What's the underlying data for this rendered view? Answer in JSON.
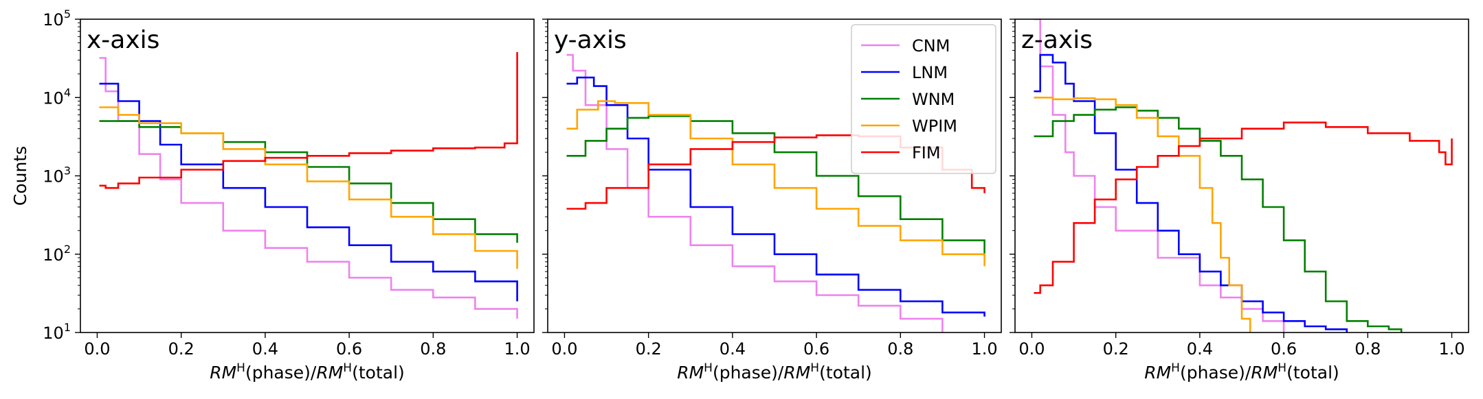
{
  "chart_data": {
    "type": "line",
    "drawstyle": "steps-mid",
    "ylabel": "Counts",
    "xlabel": {
      "prefix": "RM",
      "sup": "H",
      "mid": "(phase)/",
      "prefix2": "RM",
      "sup2": "H",
      "suffix": "(total)"
    },
    "xlim": [
      -0.04,
      1.04
    ],
    "ylim": [
      10,
      100000
    ],
    "yscale": "log",
    "grid": false,
    "x_ticks": [
      "0.0",
      "0.2",
      "0.4",
      "0.6",
      "0.8",
      "1.0"
    ],
    "x_tick_values": [
      0.0,
      0.2,
      0.4,
      0.6,
      0.8,
      1.0
    ],
    "y_ticks": [
      {
        "base": "10",
        "exp": "1",
        "value": 10
      },
      {
        "base": "10",
        "exp": "2",
        "value": 100
      },
      {
        "base": "10",
        "exp": "3",
        "value": 1000
      },
      {
        "base": "10",
        "exp": "4",
        "value": 10000
      },
      {
        "base": "10",
        "exp": "5",
        "value": 100000
      }
    ],
    "legend": {
      "placement": "top-right",
      "panel": 1,
      "entries": [
        {
          "label": "CNM",
          "color": "#ee82ee"
        },
        {
          "label": "LNM",
          "color": "#0000ff"
        },
        {
          "label": "WNM",
          "color": "#008000"
        },
        {
          "label": "WPIM",
          "color": "#ffa500"
        },
        {
          "label": "FIM",
          "color": "#ff0000"
        }
      ]
    },
    "panels": [
      {
        "title": "x-axis",
        "series": [
          {
            "name": "CNM",
            "color": "#ee82ee",
            "points": [
              [
                0.005,
                32000
              ],
              [
                0.02,
                12000
              ],
              [
                0.05,
                5000
              ],
              [
                0.1,
                1900
              ],
              [
                0.15,
                900
              ],
              [
                0.2,
                450
              ],
              [
                0.3,
                200
              ],
              [
                0.4,
                120
              ],
              [
                0.5,
                80
              ],
              [
                0.6,
                50
              ],
              [
                0.7,
                35
              ],
              [
                0.8,
                28
              ],
              [
                0.9,
                20
              ],
              [
                1.0,
                15
              ]
            ]
          },
          {
            "name": "LNM",
            "color": "#0000ff",
            "points": [
              [
                0.005,
                15000
              ],
              [
                0.05,
                9000
              ],
              [
                0.1,
                5000
              ],
              [
                0.15,
                2500
              ],
              [
                0.2,
                1400
              ],
              [
                0.3,
                700
              ],
              [
                0.4,
                400
              ],
              [
                0.5,
                220
              ],
              [
                0.6,
                130
              ],
              [
                0.7,
                80
              ],
              [
                0.8,
                60
              ],
              [
                0.9,
                45
              ],
              [
                1.0,
                25
              ]
            ]
          },
          {
            "name": "WNM",
            "color": "#008000",
            "points": [
              [
                0.005,
                5000
              ],
              [
                0.1,
                4200
              ],
              [
                0.2,
                3500
              ],
              [
                0.3,
                2700
              ],
              [
                0.4,
                2000
              ],
              [
                0.5,
                1300
              ],
              [
                0.6,
                800
              ],
              [
                0.7,
                450
              ],
              [
                0.8,
                280
              ],
              [
                0.9,
                180
              ],
              [
                1.0,
                140
              ]
            ]
          },
          {
            "name": "WPIM",
            "color": "#ffa500",
            "points": [
              [
                0.005,
                7500
              ],
              [
                0.05,
                6000
              ],
              [
                0.1,
                4700
              ],
              [
                0.2,
                3500
              ],
              [
                0.3,
                2200
              ],
              [
                0.4,
                1400
              ],
              [
                0.5,
                850
              ],
              [
                0.6,
                500
              ],
              [
                0.7,
                300
              ],
              [
                0.8,
                180
              ],
              [
                0.9,
                110
              ],
              [
                1.0,
                65
              ]
            ]
          },
          {
            "name": "FIM",
            "color": "#ff0000",
            "points": [
              [
                0.005,
                750
              ],
              [
                0.02,
                700
              ],
              [
                0.05,
                800
              ],
              [
                0.1,
                950
              ],
              [
                0.2,
                1200
              ],
              [
                0.3,
                1550
              ],
              [
                0.4,
                1700
              ],
              [
                0.5,
                1800
              ],
              [
                0.6,
                1950
              ],
              [
                0.7,
                2100
              ],
              [
                0.8,
                2250
              ],
              [
                0.9,
                2300
              ],
              [
                0.97,
                2600
              ],
              [
                1.0,
                38000
              ]
            ]
          }
        ]
      },
      {
        "title": "y-axis",
        "series": [
          {
            "name": "CNM",
            "color": "#ee82ee",
            "points": [
              [
                0.005,
                35000
              ],
              [
                0.02,
                22000
              ],
              [
                0.05,
                8000
              ],
              [
                0.1,
                2200
              ],
              [
                0.15,
                700
              ],
              [
                0.2,
                300
              ],
              [
                0.3,
                130
              ],
              [
                0.4,
                70
              ],
              [
                0.5,
                45
              ],
              [
                0.6,
                30
              ],
              [
                0.7,
                22
              ],
              [
                0.8,
                15
              ],
              [
                0.9,
                10
              ]
            ]
          },
          {
            "name": "LNM",
            "color": "#0000ff",
            "points": [
              [
                0.005,
                15000
              ],
              [
                0.03,
                18000
              ],
              [
                0.07,
                14000
              ],
              [
                0.1,
                8000
              ],
              [
                0.15,
                3000
              ],
              [
                0.2,
                1200
              ],
              [
                0.3,
                400
              ],
              [
                0.4,
                180
              ],
              [
                0.5,
                100
              ],
              [
                0.6,
                55
              ],
              [
                0.7,
                35
              ],
              [
                0.8,
                25
              ],
              [
                0.9,
                18
              ],
              [
                1.0,
                16
              ]
            ]
          },
          {
            "name": "WNM",
            "color": "#008000",
            "points": [
              [
                0.005,
                1800
              ],
              [
                0.05,
                2800
              ],
              [
                0.1,
                4000
              ],
              [
                0.15,
                5500
              ],
              [
                0.2,
                5800
              ],
              [
                0.3,
                5000
              ],
              [
                0.4,
                3500
              ],
              [
                0.5,
                2000
              ],
              [
                0.6,
                1000
              ],
              [
                0.7,
                550
              ],
              [
                0.8,
                280
              ],
              [
                0.9,
                150
              ],
              [
                1.0,
                95
              ]
            ]
          },
          {
            "name": "WPIM",
            "color": "#ffa500",
            "points": [
              [
                0.005,
                4000
              ],
              [
                0.03,
                7000
              ],
              [
                0.08,
                9000
              ],
              [
                0.12,
                8500
              ],
              [
                0.2,
                6000
              ],
              [
                0.3,
                3000
              ],
              [
                0.4,
                1400
              ],
              [
                0.5,
                700
              ],
              [
                0.6,
                380
              ],
              [
                0.7,
                230
              ],
              [
                0.8,
                150
              ],
              [
                0.9,
                100
              ],
              [
                1.0,
                70
              ]
            ]
          },
          {
            "name": "FIM",
            "color": "#ff0000",
            "points": [
              [
                0.005,
                380
              ],
              [
                0.05,
                450
              ],
              [
                0.1,
                700
              ],
              [
                0.2,
                1400
              ],
              [
                0.3,
                2200
              ],
              [
                0.4,
                2700
              ],
              [
                0.5,
                3100
              ],
              [
                0.6,
                3300
              ],
              [
                0.7,
                3200
              ],
              [
                0.8,
                2300
              ],
              [
                0.9,
                1200
              ],
              [
                0.97,
                700
              ],
              [
                1.0,
                600
              ]
            ]
          }
        ]
      },
      {
        "title": "z-axis",
        "series": [
          {
            "name": "CNM",
            "color": "#ee82ee",
            "points": [
              [
                0.005,
                100000
              ],
              [
                0.02,
                25000
              ],
              [
                0.05,
                6000
              ],
              [
                0.08,
                2000
              ],
              [
                0.1,
                1000
              ],
              [
                0.15,
                400
              ],
              [
                0.2,
                200
              ],
              [
                0.3,
                90
              ],
              [
                0.4,
                40
              ],
              [
                0.45,
                28
              ],
              [
                0.5,
                20
              ],
              [
                0.55,
                14
              ],
              [
                0.6,
                10
              ]
            ]
          },
          {
            "name": "LNM",
            "color": "#0000ff",
            "points": [
              [
                0.005,
                12000
              ],
              [
                0.02,
                35000
              ],
              [
                0.05,
                28000
              ],
              [
                0.08,
                15000
              ],
              [
                0.1,
                9000
              ],
              [
                0.15,
                3500
              ],
              [
                0.2,
                1200
              ],
              [
                0.25,
                450
              ],
              [
                0.3,
                200
              ],
              [
                0.35,
                100
              ],
              [
                0.4,
                60
              ],
              [
                0.45,
                40
              ],
              [
                0.5,
                25
              ],
              [
                0.55,
                18
              ],
              [
                0.6,
                14
              ],
              [
                0.65,
                12
              ],
              [
                0.7,
                11
              ],
              [
                0.75,
                10
              ]
            ]
          },
          {
            "name": "WNM",
            "color": "#008000",
            "points": [
              [
                0.005,
                3200
              ],
              [
                0.05,
                5000
              ],
              [
                0.1,
                6000
              ],
              [
                0.15,
                7000
              ],
              [
                0.2,
                7500
              ],
              [
                0.25,
                6800
              ],
              [
                0.3,
                5500
              ],
              [
                0.35,
                4000
              ],
              [
                0.4,
                2800
              ],
              [
                0.45,
                1800
              ],
              [
                0.5,
                900
              ],
              [
                0.55,
                400
              ],
              [
                0.6,
                150
              ],
              [
                0.65,
                60
              ],
              [
                0.7,
                25
              ],
              [
                0.75,
                14
              ],
              [
                0.8,
                12
              ],
              [
                0.85,
                11
              ],
              [
                0.88,
                10
              ]
            ]
          },
          {
            "name": "WPIM",
            "color": "#ffa500",
            "points": [
              [
                0.005,
                10000
              ],
              [
                0.05,
                9500
              ],
              [
                0.1,
                9800
              ],
              [
                0.15,
                9500
              ],
              [
                0.2,
                8000
              ],
              [
                0.25,
                5500
              ],
              [
                0.3,
                3200
              ],
              [
                0.35,
                1800
              ],
              [
                0.4,
                700
              ],
              [
                0.43,
                250
              ],
              [
                0.45,
                90
              ],
              [
                0.47,
                40
              ],
              [
                0.5,
                15
              ],
              [
                0.52,
                10
              ]
            ]
          },
          {
            "name": "FIM",
            "color": "#ff0000",
            "points": [
              [
                0.005,
                32
              ],
              [
                0.02,
                40
              ],
              [
                0.05,
                80
              ],
              [
                0.1,
                250
              ],
              [
                0.15,
                500
              ],
              [
                0.2,
                900
              ],
              [
                0.25,
                1300
              ],
              [
                0.3,
                1800
              ],
              [
                0.35,
                2400
              ],
              [
                0.4,
                3000
              ],
              [
                0.5,
                4000
              ],
              [
                0.6,
                4800
              ],
              [
                0.65,
                4800
              ],
              [
                0.7,
                4200
              ],
              [
                0.8,
                3500
              ],
              [
                0.9,
                2800
              ],
              [
                0.97,
                2000
              ],
              [
                0.985,
                1400
              ],
              [
                1.0,
                3000
              ]
            ]
          }
        ]
      }
    ]
  }
}
